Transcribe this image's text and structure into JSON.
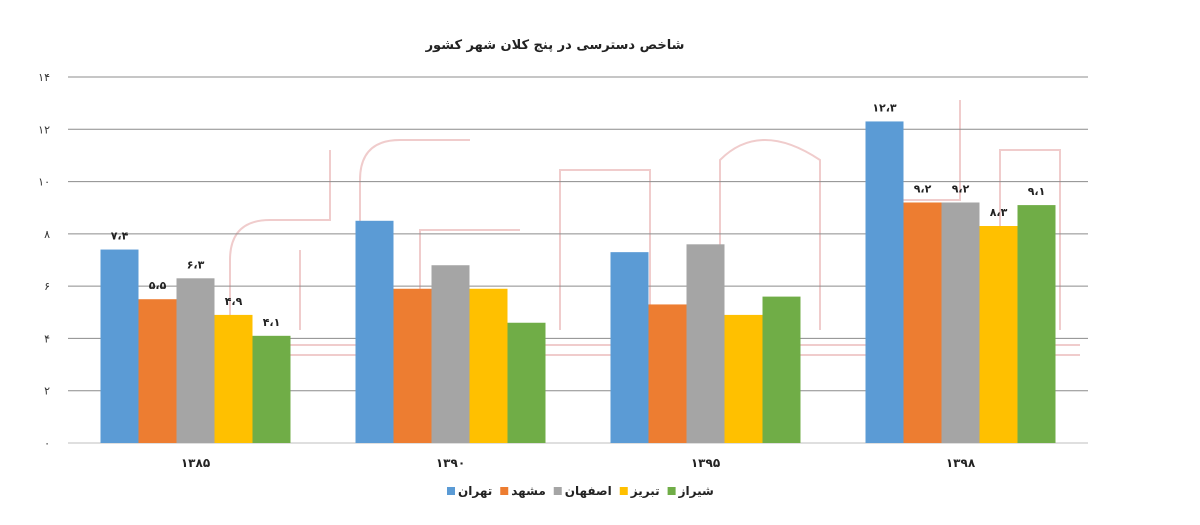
{
  "chart_data": {
    "type": "bar",
    "title": "شاخص دسترسی در پنج کلان شهر کشور",
    "categories": [
      "۱۳۸۵",
      "۱۳۹۰",
      "۱۳۹۵",
      "۱۳۹۸"
    ],
    "ylim": [
      0,
      14
    ],
    "yticks": [
      "۰",
      "۲",
      "۴",
      "۶",
      "۸",
      "۱۰",
      "۱۲",
      "۱۴"
    ],
    "grid": true,
    "legend": "bottom",
    "series": [
      {
        "name": "تهران",
        "color": "#5b9bd5",
        "values": [
          7.4,
          8.5,
          7.3,
          12.3
        ],
        "labels": [
          "۷،۴",
          "",
          "",
          "۱۲،۳"
        ]
      },
      {
        "name": "مشهد",
        "color": "#ed7d31",
        "values": [
          5.5,
          5.9,
          5.3,
          9.2
        ],
        "labels": [
          "۵،۵",
          "",
          "",
          "۹،۲"
        ]
      },
      {
        "name": "اصفهان",
        "color": "#a5a5a5",
        "values": [
          6.3,
          6.8,
          7.6,
          9.2
        ],
        "labels": [
          "۶،۳",
          "",
          "",
          "۹،۲"
        ]
      },
      {
        "name": "تبریز",
        "color": "#ffc000",
        "values": [
          4.9,
          5.9,
          4.9,
          8.3
        ],
        "labels": [
          "۴،۹",
          "",
          "",
          "۸،۳"
        ]
      },
      {
        "name": "شیراز",
        "color": "#70ad47",
        "values": [
          4.1,
          4.6,
          5.6,
          9.1
        ],
        "labels": [
          "۴،۱",
          "",
          "",
          "۹،۱"
        ]
      }
    ]
  }
}
